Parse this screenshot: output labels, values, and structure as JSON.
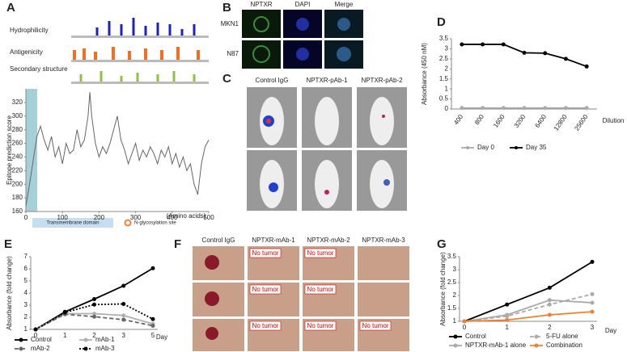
{
  "panels": {
    "letters": [
      "A",
      "B",
      "C",
      "D",
      "E",
      "F",
      "G"
    ],
    "a": {
      "tracks": [
        "Hydrophilicity",
        "Antigenicity",
        "Secondary structure"
      ],
      "transmembrane": "Transmembrane domain",
      "glycosylation": "N-glycosylation site"
    },
    "b": {
      "columns": [
        "NPTXR",
        "DAPI",
        "Merge"
      ],
      "rows": [
        "MKN1",
        "N87"
      ]
    },
    "c": {
      "columns": [
        "Control IgG",
        "NPTXR-pAb-1",
        "NPTXR-pAb-2"
      ]
    },
    "f": {
      "columns": [
        "Control IgG",
        "NPTXR-mAb-1",
        "NPTXR-mAb-2",
        "NPTXR-mAb-3"
      ],
      "no_tumor": [
        "No tumor",
        "No tumor",
        "No tumor",
        "No tumor",
        "No tumor",
        "No tumor",
        "No tumor"
      ]
    }
  },
  "chart_data": [
    {
      "type": "line",
      "y_label": "Epitope prediction score",
      "x_label": "(Amino acids)",
      "color": "#666666",
      "x": [
        0,
        10,
        20,
        30,
        40,
        50,
        60,
        70,
        80,
        90,
        100,
        110,
        120,
        130,
        140,
        150,
        160,
        170,
        175,
        180,
        190,
        200,
        210,
        220,
        230,
        240,
        250,
        260,
        270,
        280,
        290,
        300,
        310,
        320,
        330,
        340,
        350,
        360,
        370,
        380,
        390,
        400,
        410,
        420,
        430,
        440,
        450,
        460,
        470,
        480,
        490,
        500
      ],
      "values": [
        168,
        200,
        235,
        270,
        285,
        265,
        250,
        270,
        240,
        255,
        230,
        260,
        245,
        250,
        280,
        255,
        265,
        300,
        335,
        300,
        260,
        240,
        255,
        245,
        260,
        280,
        300,
        265,
        250,
        230,
        245,
        260,
        235,
        250,
        240,
        255,
        245,
        230,
        250,
        240,
        255,
        230,
        245,
        225,
        240,
        220,
        230,
        200,
        185,
        230,
        255,
        265
      ],
      "xlim": [
        0,
        500
      ],
      "xticks": [
        0,
        100,
        200,
        300,
        400,
        500
      ],
      "ylim": [
        160,
        340
      ],
      "yticks": [
        160,
        180,
        200,
        220,
        240,
        260,
        280,
        300,
        320
      ]
    },
    {
      "type": "line",
      "y_label": "Absorbance (450 nM)",
      "x_label": "Dilution",
      "legend": "bottom",
      "categories": [
        "400",
        "800",
        "1600",
        "3200",
        "6400",
        "12800",
        "25600"
      ],
      "series": [
        {
          "name": "Day 0",
          "color": "#aaaaaa",
          "values": [
            0.05,
            0.05,
            0.05,
            0.05,
            0.05,
            0.05,
            0.05
          ]
        },
        {
          "name": "Day 35",
          "color": "#000000",
          "values": [
            3.22,
            3.22,
            3.22,
            2.8,
            2.78,
            2.5,
            2.12
          ]
        }
      ],
      "ylim": [
        0,
        3.5
      ],
      "yticks": [
        0,
        0.5,
        1,
        1.5,
        2,
        2.5,
        3,
        3.5
      ]
    },
    {
      "type": "line",
      "y_label": "Absorbance (fold change)",
      "x_label": "Day",
      "legend": "bottom",
      "categories": [
        "0",
        "1",
        "2",
        "3",
        "5"
      ],
      "series": [
        {
          "name": "Control",
          "color": "#000000",
          "values": [
            1,
            2.45,
            3.5,
            4.6,
            6.05
          ]
        },
        {
          "name": "mAb-1",
          "color": "#b0b0b0",
          "values": [
            1,
            2.3,
            2.3,
            2.15,
            1.45
          ]
        },
        {
          "name": "mAb-2",
          "color": "#666666",
          "dash": "5,3",
          "values": [
            1,
            2.25,
            2.05,
            1.8,
            1.3
          ]
        },
        {
          "name": "mAb-3",
          "color": "#000000",
          "dash": "2,2",
          "values": [
            1,
            2.4,
            3.05,
            3.1,
            1.85
          ]
        }
      ],
      "ylim": [
        1,
        7
      ],
      "yticks": [
        1,
        2,
        3,
        4,
        5,
        6,
        7
      ]
    },
    {
      "type": "line",
      "y_label": "Absorbance (fold change)",
      "x_label": "Day",
      "legend": "bottom",
      "categories": [
        "0",
        "1",
        "2",
        "3"
      ],
      "series": [
        {
          "name": "Control",
          "color": "#000000",
          "values": [
            1,
            1.65,
            2.3,
            3.3
          ]
        },
        {
          "name": "5-FU alone",
          "color": "#aaaaaa",
          "dash": "5,3",
          "values": [
            1,
            1.2,
            1.65,
            2.05
          ]
        },
        {
          "name": "NPTXR-mAb-1 alone",
          "color": "#aaaaaa",
          "values": [
            1,
            1.25,
            1.82,
            1.72
          ]
        },
        {
          "name": "Combination",
          "color": "#f08030",
          "values": [
            1,
            1.05,
            1.25,
            1.37
          ]
        }
      ],
      "ylim": [
        1,
        3.5
      ],
      "yticks": [
        1,
        1.5,
        2,
        2.5,
        3,
        3.5
      ]
    }
  ]
}
